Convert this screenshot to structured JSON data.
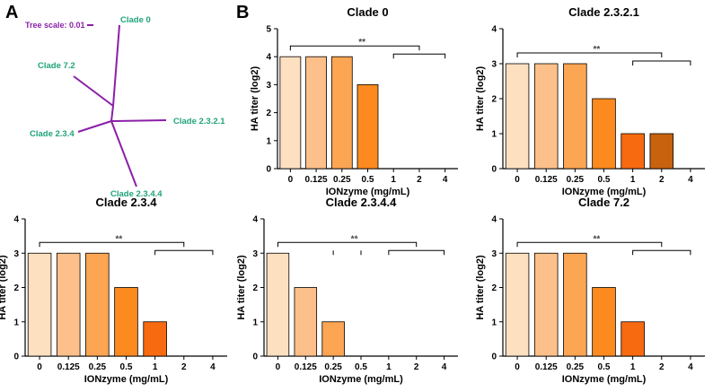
{
  "panels": {
    "a": "A",
    "b": "B"
  },
  "tree": {
    "scale_label": "Tree scale: 0.01",
    "branch_color": "#8b1fa8",
    "label_color": "#1fa37a",
    "scale_color": "#8b1fa8",
    "leaves": [
      "Clade 0",
      "Clade 7.2",
      "Clade 2.3.2.1",
      "Clade 2.3.4",
      "Clade 2.3.4.4"
    ]
  },
  "colors": [
    "#fde0c0",
    "#fdc08a",
    "#fca552",
    "#fc8a1e",
    "#f86a10",
    "#c8620f",
    "#8a3c05"
  ],
  "chart_data": [
    {
      "type": "bar",
      "title": "Clade 0",
      "categories": [
        "0",
        "0.125",
        "0.25",
        "0.5",
        "1",
        "2",
        "4"
      ],
      "values": [
        4,
        4,
        4,
        3,
        0,
        0,
        0
      ],
      "xlabel": "IONzyme (mg/mL)",
      "ylabel": "HA titer (log2)",
      "ylim": [
        0,
        5
      ],
      "yticks": [
        "0",
        "1",
        "2",
        "3",
        "4",
        "5"
      ],
      "significance": "**"
    },
    {
      "type": "bar",
      "title": "Clade 2.3.2.1",
      "categories": [
        "0",
        "0.125",
        "0.25",
        "0.5",
        "1",
        "2",
        "4"
      ],
      "values": [
        3,
        3,
        3,
        2,
        1,
        1,
        0
      ],
      "xlabel": "IONzyme (mg/mL)",
      "ylabel": "HA titer (log2)",
      "ylim": [
        0,
        4
      ],
      "yticks": [
        "0",
        "1",
        "2",
        "3",
        "4"
      ],
      "significance": "**"
    },
    {
      "type": "bar",
      "title": "Clade 2.3.4",
      "categories": [
        "0",
        "0.125",
        "0.25",
        "0.5",
        "1",
        "2",
        "4"
      ],
      "values": [
        3,
        3,
        3,
        2,
        1,
        0,
        0
      ],
      "xlabel": "IONzyme (mg/mL)",
      "ylabel": "HA titer (log2)",
      "ylim": [
        0,
        4
      ],
      "yticks": [
        "0",
        "1",
        "2",
        "3",
        "4"
      ],
      "significance": "**"
    },
    {
      "type": "bar",
      "title": "Clade 2.3.4.4",
      "categories": [
        "0",
        "0.125",
        "0.25",
        "0.5",
        "1",
        "2",
        "4"
      ],
      "values": [
        3,
        2,
        1,
        0,
        0,
        0,
        0
      ],
      "xlabel": "IONzyme (mg/mL)",
      "ylabel": "HA titer (log2)",
      "ylim": [
        0,
        4
      ],
      "yticks": [
        "0",
        "1",
        "2",
        "3",
        "4"
      ],
      "significance": "**"
    },
    {
      "type": "bar",
      "title": "Clade 7.2",
      "categories": [
        "0",
        "0.125",
        "0.25",
        "0.5",
        "1",
        "2",
        "4"
      ],
      "values": [
        3,
        3,
        3,
        2,
        1,
        0,
        0
      ],
      "xlabel": "IONzyme (mg/mL)",
      "ylabel": "HA titer (log2)",
      "ylim": [
        0,
        4
      ],
      "yticks": [
        "0",
        "1",
        "2",
        "3",
        "4"
      ],
      "significance": "**"
    }
  ]
}
